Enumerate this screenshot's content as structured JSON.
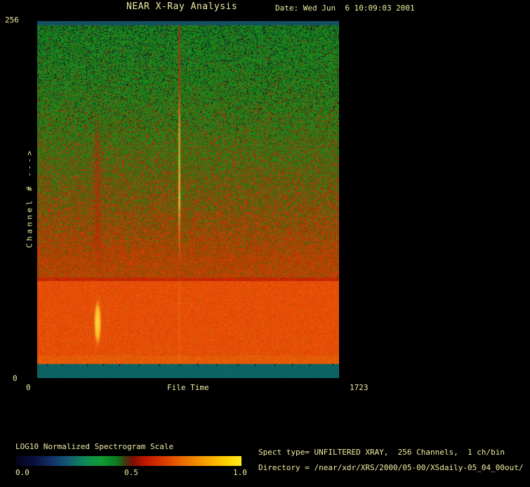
{
  "window": {
    "title": "NEAR X-Ray Analysis",
    "date": "Date: Wed Jun  6 10:09:03 2001"
  },
  "colors": {
    "background": "#000000",
    "text": "#f0eda2",
    "top_border_teal": "#104b5f",
    "bottom_border_teal": "#0a5f5f",
    "burst_core_yellow": "#ffd23c",
    "orange_band": "#e65a05"
  },
  "chart_data": {
    "type": "heatmap",
    "title": "NEAR X-Ray Analysis",
    "xlabel": "File Time",
    "ylabel": "Channel # --->",
    "x_range": [
      0,
      1723
    ],
    "y_range": [
      0,
      256
    ],
    "x_tick_labels": [
      "0",
      "1723"
    ],
    "y_tick_labels": [
      "0",
      "256"
    ],
    "grid": false,
    "render_seed": 1234567,
    "regions": [
      {
        "name": "top-border-band",
        "channels": [
          253,
          256
        ],
        "color": "#104b5f"
      },
      {
        "name": "noise-gradient",
        "channels": [
          72,
          253
        ],
        "description": "green noise with dark blue speckles at high channels grading into dense red noise at lower channels"
      },
      {
        "name": "low-channel-orange-band",
        "channels": [
          10,
          72
        ],
        "color": "#e65a05",
        "description": "bright smooth orange band"
      },
      {
        "name": "bottom-border-band",
        "channels": [
          0,
          10
        ],
        "color": "#0a5f5f"
      }
    ],
    "features": [
      {
        "name": "sharp-burst-line",
        "file_time": 810,
        "channels": [
          10,
          253
        ],
        "description": "narrow vertical line, red at high channels brightening to yellow mid-channel, fading low"
      },
      {
        "name": "diffuse-red-streak",
        "file_time": 343,
        "channels": [
          72,
          190
        ],
        "description": "fuzzy vertical red streak"
      },
      {
        "name": "bright-blob",
        "file_time": 343,
        "channels": [
          22,
          57
        ],
        "peak_channel": 40,
        "color": "#ffd23c",
        "description": "elongated bright yellow blob inside orange band"
      }
    ],
    "colorbar": {
      "label": "LOG10 Normalized Spectrogram Scale",
      "range": [
        0,
        1
      ],
      "tick_labels": [
        "0.0",
        "0.5",
        "1.0"
      ],
      "gradient_stops": [
        {
          "pos": "0%",
          "color": "#03031a"
        },
        {
          "pos": "8%",
          "color": "#0a0f3c"
        },
        {
          "pos": "16%",
          "color": "#14306a"
        },
        {
          "pos": "24%",
          "color": "#135f75"
        },
        {
          "pos": "31%",
          "color": "#0f8a55"
        },
        {
          "pos": "38%",
          "color": "#129932"
        },
        {
          "pos": "45%",
          "color": "#0c7a1f"
        },
        {
          "pos": "49%",
          "color": "#4a3010"
        },
        {
          "pos": "52%",
          "color": "#7c1006"
        },
        {
          "pos": "57%",
          "color": "#c01400"
        },
        {
          "pos": "66%",
          "color": "#dd3c00"
        },
        {
          "pos": "76%",
          "color": "#ee7700"
        },
        {
          "pos": "86%",
          "color": "#f8aa00"
        },
        {
          "pos": "94%",
          "color": "#ffd400"
        },
        {
          "pos": "100%",
          "color": "#ffe926"
        }
      ]
    }
  },
  "footer": {
    "spect_info": "Spect type= UNFILTERED XRAY,  256 Channels,  1 ch/bin",
    "directory": "Directory = /near/xdr/XRS/2000/05-00/XSdaily-05_04_00out/"
  }
}
